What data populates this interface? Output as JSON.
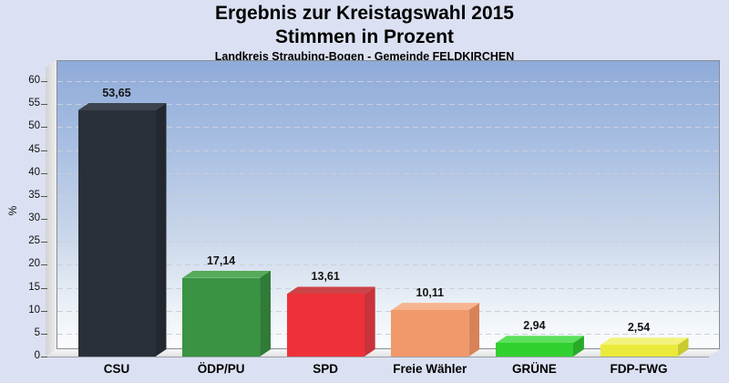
{
  "header": {
    "line1": "Ergebnis zur Kreistagswahl 2015",
    "line2": "Stimmen in Prozent",
    "line3": "Landkreis Straubing-Bogen - Gemeinde FELDKIRCHEN"
  },
  "chart_data": {
    "type": "bar",
    "projection": "3d-columns",
    "title": "Ergebnis zur Kreistagswahl 2015 - Stimmen in Prozent",
    "subtitle": "Landkreis Straubing-Bogen - Gemeinde FELDKIRCHEN",
    "categories": [
      "CSU",
      "ÖDP/PU",
      "SPD",
      "Freie Wähler",
      "GRÜNE",
      "FDP-FWG"
    ],
    "values": [
      53.65,
      17.14,
      13.61,
      10.11,
      2.94,
      2.54
    ],
    "value_labels": [
      "53,65",
      "17,14",
      "13,61",
      "10,11",
      "2,94",
      "2,54"
    ],
    "bar_colors": [
      {
        "front": "#2a3039",
        "top": "#3c4450",
        "side": "#232830"
      },
      {
        "front": "#3a9342",
        "top": "#55aa59",
        "side": "#2f7b37"
      },
      {
        "front": "#ee3138",
        "top": "#cc4449",
        "side": "#c9333b"
      },
      {
        "front": "#f1996a",
        "top": "#f6b58e",
        "side": "#d98258"
      },
      {
        "front": "#30d030",
        "top": "#5ce05c",
        "side": "#28aa28"
      },
      {
        "front": "#eaea3c",
        "top": "#f2f27c",
        "side": "#c9c930"
      }
    ],
    "xlabel": "",
    "ylabel": "%",
    "ylim": [
      0,
      62
    ],
    "yticks": [
      0,
      5,
      10,
      15,
      20,
      25,
      30,
      35,
      40,
      45,
      50,
      55,
      60
    ],
    "grid": "dashed-horizontal",
    "legend": "none",
    "background": {
      "page": "#dbe1f2",
      "plot_top": "#8fabd9",
      "plot_bottom": "#fbfcfe",
      "wall": "#e0e0e0",
      "floor": "#ededed",
      "gridline": "#c9d0da",
      "border": "#858c96"
    }
  }
}
